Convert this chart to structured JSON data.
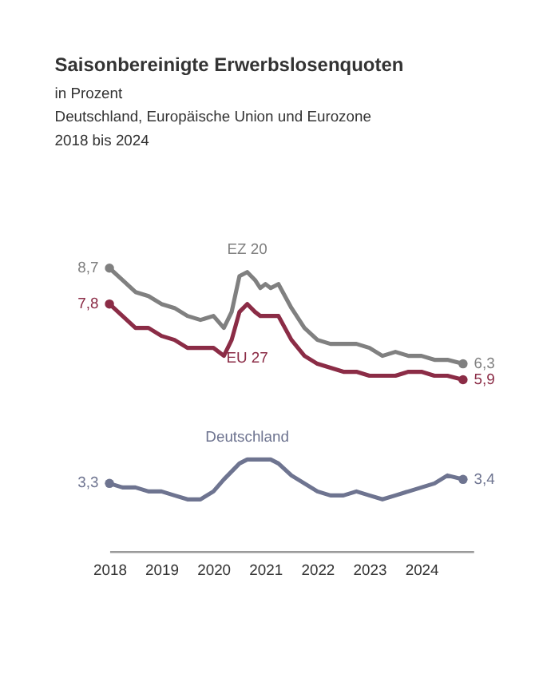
{
  "chart_data": {
    "type": "line",
    "title": "Saisonbereinigte Erwerbslosenquoten",
    "subtitle": "in Prozent\nDeutschland, Europäische Union und Eurozone\n2018 bis 2024",
    "x": [
      2018,
      2018.25,
      2018.5,
      2018.75,
      2019,
      2019.25,
      2019.5,
      2019.75,
      2020,
      2020.2,
      2020.35,
      2020.5,
      2020.65,
      2020.8,
      2020.9,
      2021,
      2021.1,
      2021.25,
      2021.5,
      2021.75,
      2022,
      2022.25,
      2022.5,
      2022.75,
      2023,
      2023.25,
      2023.5,
      2023.75,
      2024,
      2024.25,
      2024.5,
      2024.8
    ],
    "series": [
      {
        "name": "EZ 20",
        "color": "#808080",
        "values": [
          8.7,
          8.4,
          8.1,
          8.0,
          7.8,
          7.7,
          7.5,
          7.4,
          7.5,
          7.2,
          7.6,
          8.5,
          8.6,
          8.4,
          8.2,
          8.3,
          8.2,
          8.3,
          7.7,
          7.2,
          6.9,
          6.8,
          6.8,
          6.8,
          6.7,
          6.5,
          6.6,
          6.5,
          6.5,
          6.4,
          6.4,
          6.3
        ],
        "value_labels": [
          "8,7",
          null,
          null,
          null,
          null,
          null,
          null,
          null,
          null,
          null,
          null,
          null,
          null,
          null,
          null,
          null,
          null,
          null,
          null,
          null,
          null,
          null,
          null,
          null,
          null,
          null,
          null,
          null,
          null,
          null,
          null,
          "6,3"
        ]
      },
      {
        "name": "EU 27",
        "color": "#8b2c46",
        "values": [
          7.8,
          7.5,
          7.2,
          7.2,
          7.0,
          6.9,
          6.7,
          6.7,
          6.7,
          6.5,
          6.9,
          7.6,
          7.8,
          7.6,
          7.5,
          7.5,
          7.5,
          7.5,
          6.9,
          6.5,
          6.3,
          6.2,
          6.1,
          6.1,
          6.0,
          6.0,
          6.0,
          6.1,
          6.1,
          6.0,
          6.0,
          5.9
        ],
        "value_labels": [
          "7,8",
          null,
          null,
          null,
          null,
          null,
          null,
          null,
          null,
          null,
          null,
          null,
          null,
          null,
          null,
          null,
          null,
          null,
          null,
          null,
          null,
          null,
          null,
          null,
          null,
          null,
          null,
          null,
          null,
          null,
          null,
          "5,9"
        ]
      },
      {
        "name": "Deutschland",
        "color": "#6e7490",
        "values": [
          3.3,
          3.2,
          3.2,
          3.1,
          3.1,
          3.0,
          2.9,
          2.9,
          3.1,
          3.4,
          3.6,
          3.8,
          3.9,
          3.9,
          3.9,
          3.9,
          3.9,
          3.8,
          3.5,
          3.3,
          3.1,
          3.0,
          3.0,
          3.1,
          3.0,
          2.9,
          3.0,
          3.1,
          3.2,
          3.3,
          3.5,
          3.4
        ],
        "value_labels": [
          "3,3",
          null,
          null,
          null,
          null,
          null,
          null,
          null,
          null,
          null,
          null,
          null,
          null,
          null,
          null,
          null,
          null,
          null,
          null,
          null,
          null,
          null,
          null,
          null,
          null,
          null,
          null,
          null,
          null,
          null,
          null,
          "3,4"
        ]
      }
    ],
    "xlim": [
      2018,
      2025
    ],
    "xticks": [
      2018,
      2019,
      2020,
      2021,
      2022,
      2023,
      2024
    ],
    "tick_labels": "x",
    "grid": false,
    "line_style": "solid"
  }
}
